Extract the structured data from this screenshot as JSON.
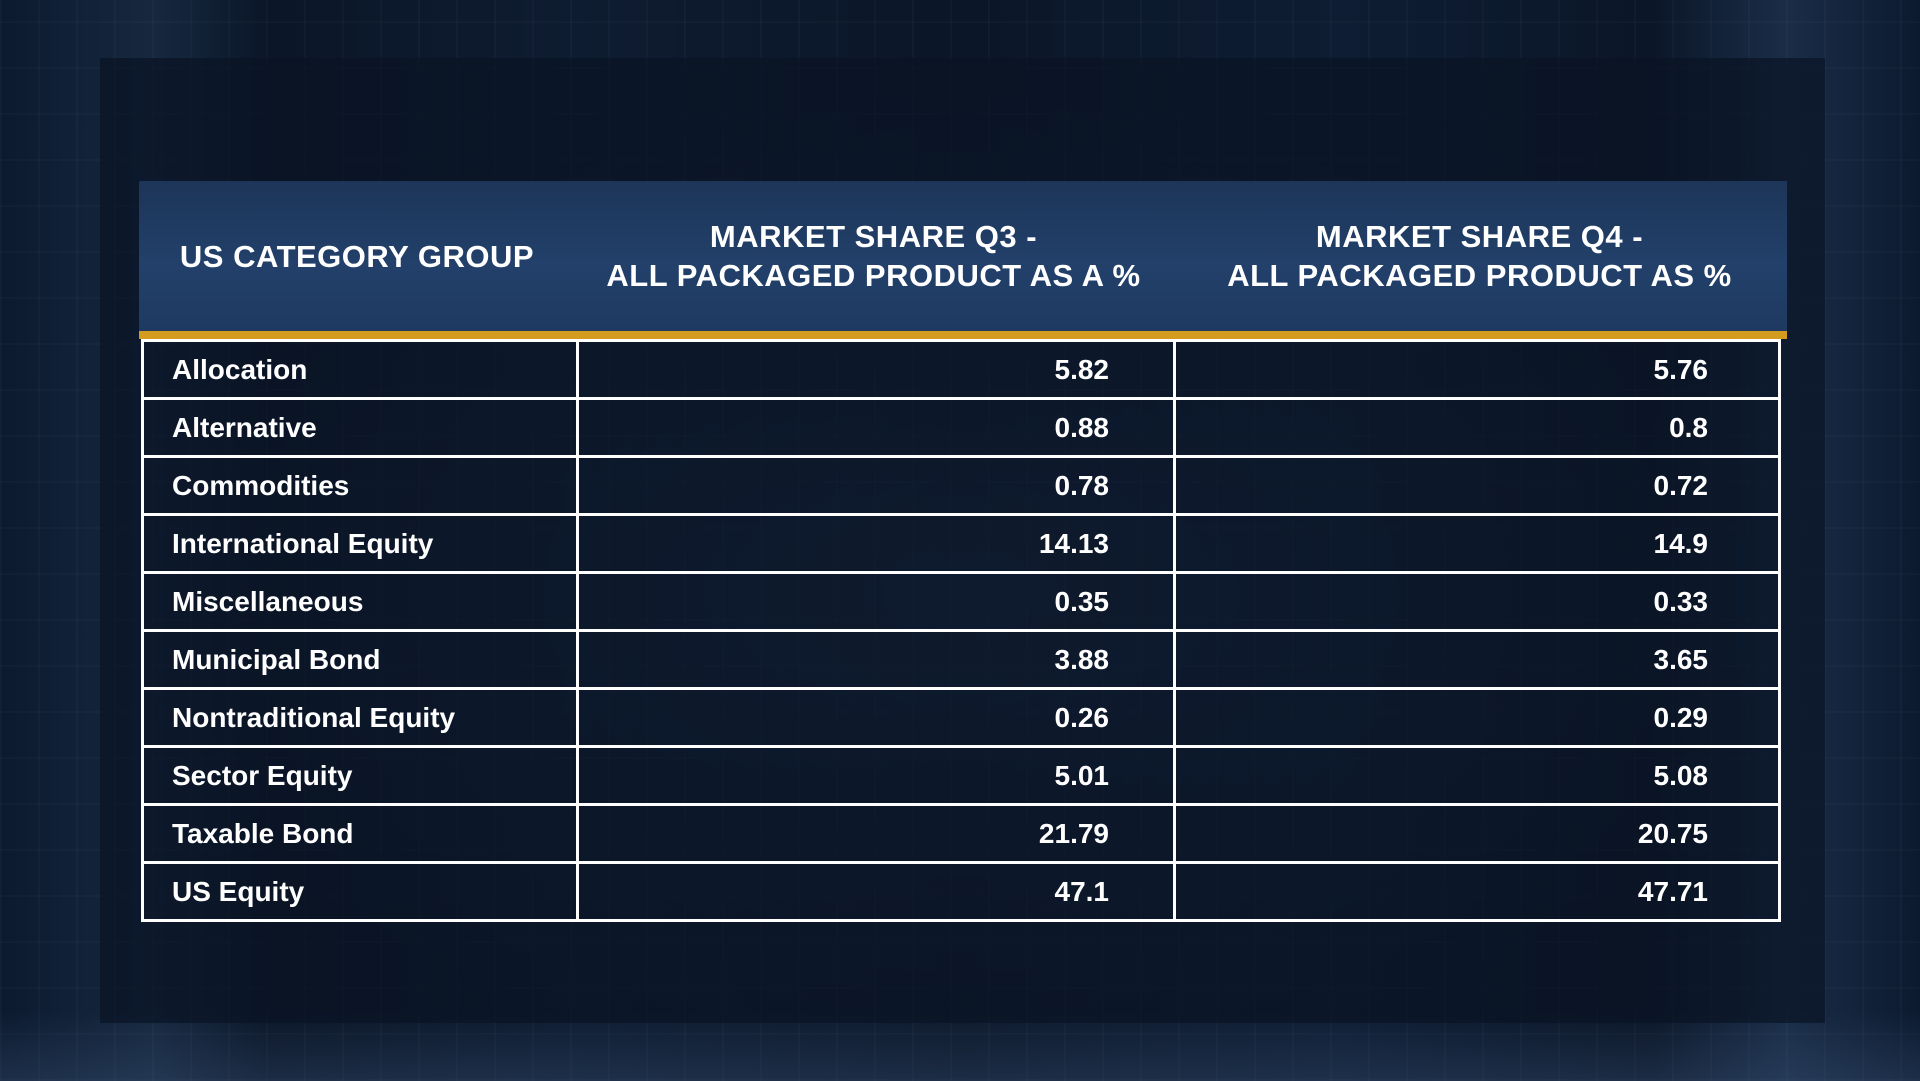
{
  "chart_data": {
    "type": "table",
    "columns": [
      "US CATEGORY GROUP",
      "MARKET SHARE Q3 -\nALL PACKAGED PRODUCT AS A %",
      "MARKET SHARE Q4 -\nALL PACKAGED PRODUCT AS %"
    ],
    "rows": [
      {
        "category": "Allocation",
        "q3": "5.82",
        "q4": "5.76"
      },
      {
        "category": "Alternative",
        "q3": "0.88",
        "q4": "0.8"
      },
      {
        "category": "Commodities",
        "q3": "0.78",
        "q4": "0.72"
      },
      {
        "category": "International Equity",
        "q3": "14.13",
        "q4": "14.9"
      },
      {
        "category": "Miscellaneous",
        "q3": "0.35",
        "q4": "0.33"
      },
      {
        "category": "Municipal Bond",
        "q3": "3.88",
        "q4": "3.65"
      },
      {
        "category": "Nontraditional Equity",
        "q3": "0.26",
        "q4": "0.29"
      },
      {
        "category": "Sector Equity",
        "q3": "5.01",
        "q4": "5.08"
      },
      {
        "category": "Taxable Bond",
        "q3": "21.79",
        "q4": "20.75"
      },
      {
        "category": "US Equity",
        "q3": "47.1",
        "q4": "47.71"
      }
    ]
  },
  "colors": {
    "header_bg": "#22406a",
    "accent_rule": "#d39c1f",
    "grid_lines": "#ffffff",
    "text": "#ffffff",
    "background": "#0b1628"
  }
}
